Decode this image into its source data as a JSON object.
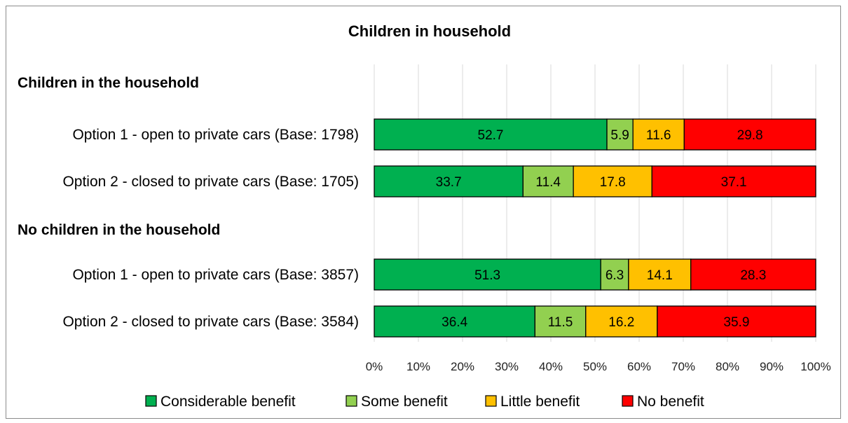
{
  "chart_data": {
    "type": "bar",
    "orientation": "horizontal",
    "stacked": "100%",
    "title": "Children in household",
    "xlim": [
      0,
      100
    ],
    "x_ticks": [
      "0%",
      "10%",
      "20%",
      "30%",
      "40%",
      "50%",
      "60%",
      "70%",
      "80%",
      "90%",
      "100%"
    ],
    "grid": "vertical",
    "legend_position": "bottom",
    "series": [
      {
        "name": "Considerable benefit",
        "color": "#00b050"
      },
      {
        "name": "Some benefit",
        "color": "#92d050"
      },
      {
        "name": "Little benefit",
        "color": "#ffc000"
      },
      {
        "name": "No benefit",
        "color": "#ff0000"
      }
    ],
    "groups": [
      {
        "label": "Children in the household",
        "rows": [
          {
            "label": "Option 1  - open to private cars (Base: 1798)",
            "values": [
              52.7,
              5.9,
              11.6,
              29.8
            ]
          },
          {
            "label": "Option 2 - closed to private cars (Base: 1705)",
            "values": [
              33.7,
              11.4,
              17.8,
              37.1
            ]
          }
        ]
      },
      {
        "label": "No children in the household",
        "rows": [
          {
            "label": "Option 1  - open to private cars (Base: 3857)",
            "values": [
              51.3,
              6.3,
              14.1,
              28.3
            ]
          },
          {
            "label": "Option 2 - closed to private cars (Base: 3584)",
            "values": [
              36.4,
              11.5,
              16.2,
              35.9
            ]
          }
        ]
      }
    ]
  }
}
